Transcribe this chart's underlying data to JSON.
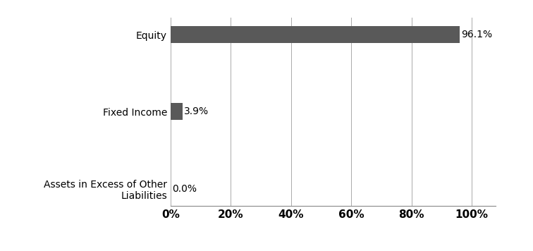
{
  "categories": [
    "Assets in Excess of Other\nLiabilities",
    "Fixed Income",
    "Equity"
  ],
  "values": [
    0.0,
    3.9,
    96.1
  ],
  "bar_color": "#595959",
  "label_color": "#000000",
  "background_color": "#ffffff",
  "xlim": [
    0,
    108
  ],
  "xticks": [
    0,
    20,
    40,
    60,
    80,
    100
  ],
  "xtick_labels": [
    "0%",
    "20%",
    "40%",
    "60%",
    "80%",
    "100%"
  ],
  "bar_height": 0.22,
  "label_fontsize": 10,
  "tick_fontsize": 11,
  "value_labels": [
    "0.0%",
    "3.9%",
    "96.1%"
  ],
  "grid_color": "#aaaaaa",
  "grid_linewidth": 0.7
}
